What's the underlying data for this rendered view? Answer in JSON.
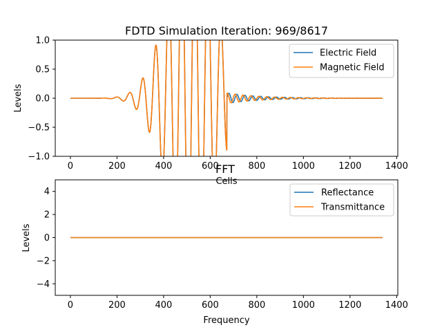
{
  "chart_data": [
    {
      "type": "line",
      "title": "FDTD Simulation Iteration: 969/8617",
      "xlabel": "Cells",
      "ylabel": "Levels",
      "xlim": [
        -65,
        1405
      ],
      "ylim": [
        -1.0,
        1.0
      ],
      "x_ticks": [
        0,
        200,
        400,
        600,
        800,
        1000,
        1200,
        1400
      ],
      "y_ticks": [
        -1.0,
        -0.5,
        0.0,
        0.5,
        1.0
      ],
      "legend": "top-right",
      "grid": false,
      "series": [
        {
          "name": "Electric Field",
          "color": "#1f77b4",
          "x_range": [
            0,
            1340
          ],
          "packet": {
            "center": 520,
            "sigma": 145,
            "wavelength": 56,
            "peak_amp": 2.8,
            "edge": 672,
            "reflected": {
              "start": 672,
              "amp": 0.09,
              "decay": 140,
              "wavelength": 34
            }
          }
        },
        {
          "name": "Magnetic Field",
          "color": "#ff7f0e",
          "x_range": [
            0,
            1340
          ],
          "packet": {
            "center": 520,
            "sigma": 145,
            "wavelength": 56,
            "peak_amp": 2.8,
            "edge": 672,
            "reflected": {
              "start": 672,
              "amp": 0.09,
              "decay": 140,
              "wavelength": 34,
              "phase": 1.4
            }
          }
        }
      ]
    },
    {
      "type": "line",
      "title": "FFT",
      "xlabel": "Frequency",
      "ylabel": "Levels",
      "xlim": [
        -65,
        1405
      ],
      "ylim": [
        -5,
        5
      ],
      "x_ticks": [
        0,
        200,
        400,
        600,
        800,
        1000,
        1200,
        1400
      ],
      "y_ticks": [
        -4,
        -2,
        0,
        2,
        4
      ],
      "legend": "top-right",
      "grid": false,
      "series": [
        {
          "name": "Reflectance",
          "color": "#1f77b4",
          "x": [
            0,
            1340
          ],
          "y": [
            0,
            0
          ]
        },
        {
          "name": "Transmittance",
          "color": "#ff7f0e",
          "x": [
            0,
            1340
          ],
          "y": [
            0,
            0
          ]
        }
      ]
    }
  ]
}
